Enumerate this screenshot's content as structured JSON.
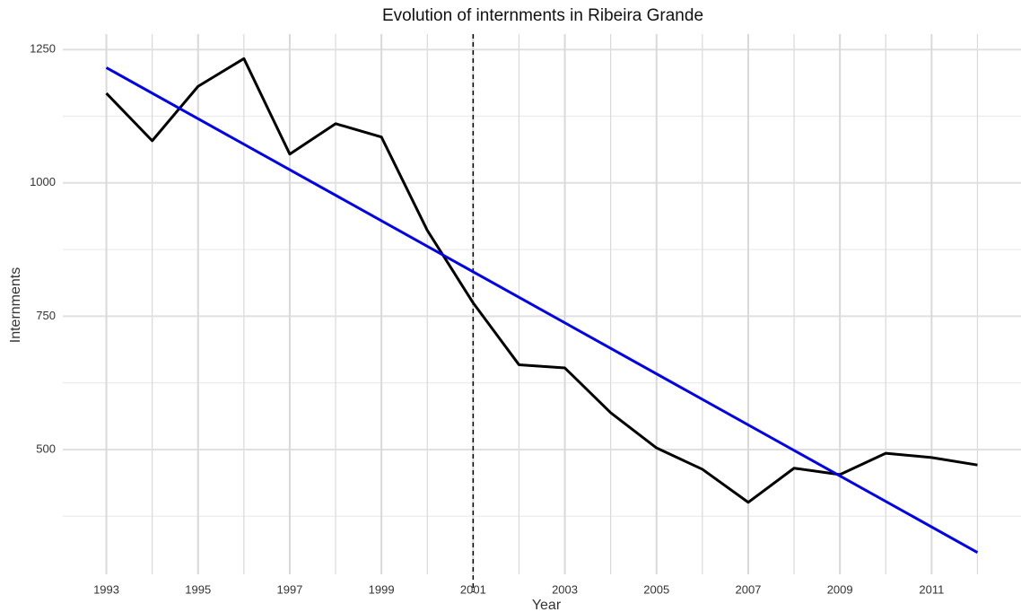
{
  "chart_data": {
    "type": "line",
    "title": "Evolution of internments in Ribeira Grande",
    "xlabel": "Year",
    "ylabel": "Internments",
    "x": [
      1993,
      1994,
      1995,
      1996,
      1997,
      1998,
      1999,
      2000,
      2001,
      2002,
      2003,
      2004,
      2005,
      2006,
      2007,
      2008,
      2009,
      2010,
      2011,
      2012
    ],
    "series": [
      {
        "color": "#000000",
        "values": [
          1168,
          1079,
          1181,
          1233,
          1054,
          1111,
          1086,
          911,
          775,
          659,
          653,
          569,
          503,
          463,
          401,
          465,
          453,
          493,
          485,
          471
        ]
      },
      {
        "color": "#0000ee",
        "x": [
          1993,
          2012
        ],
        "values": [
          1216,
          307
        ]
      }
    ],
    "vline": 2001,
    "xlim": [
      1992.05,
      2012.95
    ],
    "ylim": [
      266,
      1279
    ],
    "xticks": [
      1993,
      1995,
      1997,
      1999,
      2001,
      2003,
      2005,
      2007,
      2009,
      2011
    ],
    "xminorticks": [
      1994,
      1996,
      1998,
      2000,
      2002,
      2004,
      2006,
      2008,
      2010,
      2012
    ],
    "yticks": [
      500,
      750,
      1000,
      1250
    ],
    "yminorticks": [
      375,
      625,
      875,
      1125
    ],
    "grid": true
  }
}
